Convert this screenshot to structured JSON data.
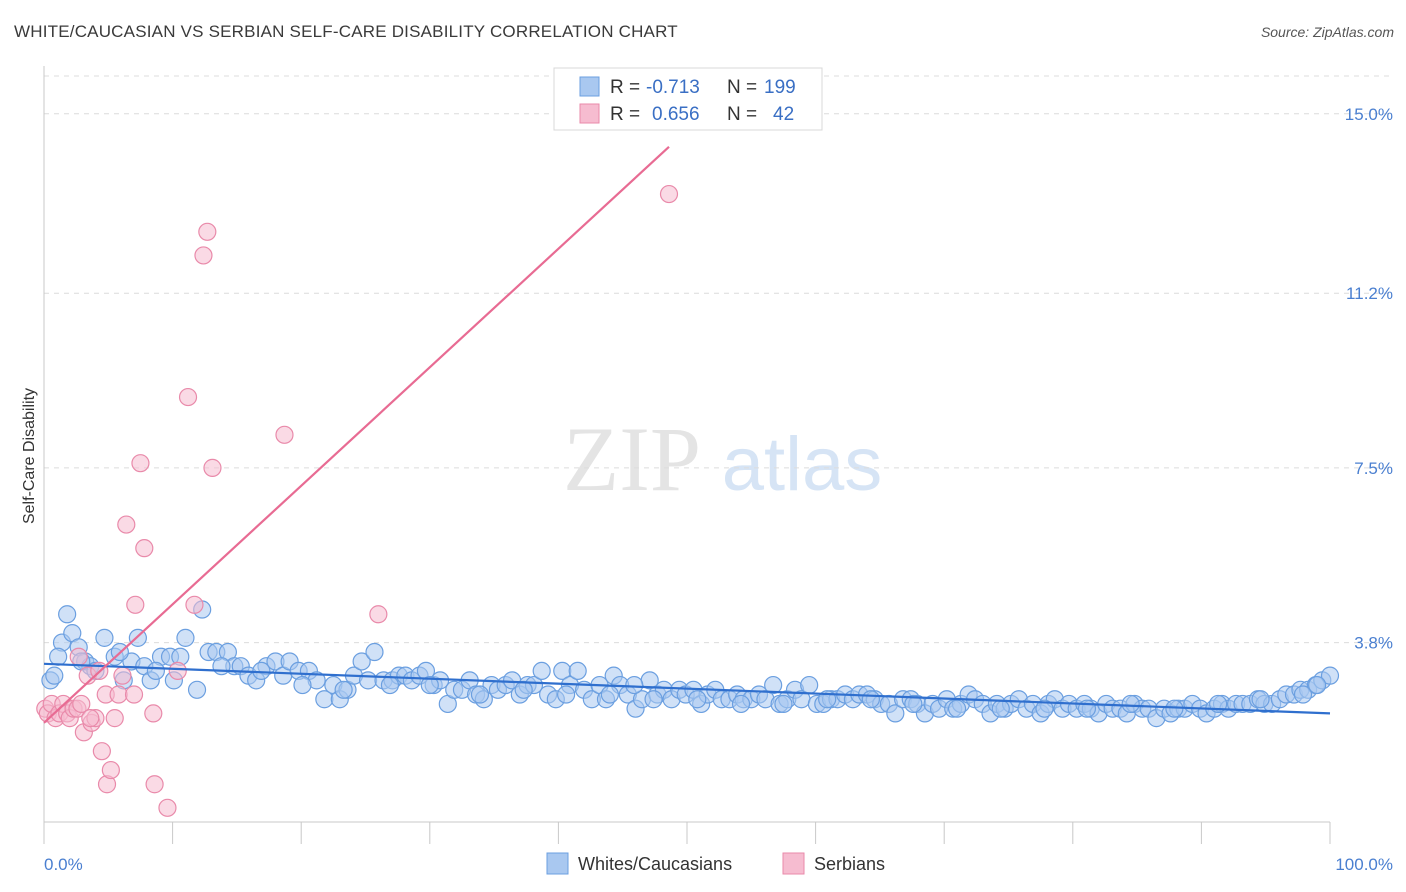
{
  "title": "WHITE/CAUCASIAN VS SERBIAN SELF-CARE DISABILITY CORRELATION CHART",
  "source": "Source: ZipAtlas.com",
  "watermark": {
    "zip": "ZIP",
    "atlas": "atlas"
  },
  "colors": {
    "blue_fill": "#a9c8f0",
    "blue_stroke": "#6b9fe0",
    "blue_line": "#2f6fce",
    "pink_fill": "#f6bcd0",
    "pink_stroke": "#e98aaa",
    "pink_line": "#e86b93",
    "tick_color": "#4a7fd0",
    "grid": "#dcdcdc"
  },
  "legend": {
    "rows": [
      {
        "r_label": "R =",
        "r_value": "-0.713",
        "n_label": "N =",
        "n_value": "199"
      },
      {
        "r_label": "R =",
        "r_value": "0.656",
        "n_label": "N =",
        "n_value": "42"
      }
    ]
  },
  "bottom_legend": [
    "Whites/Caucasians",
    "Serbians"
  ],
  "chart_data": {
    "type": "scatter",
    "title": "WHITE/CAUCASIAN VS SERBIAN SELF-CARE DISABILITY CORRELATION CHART",
    "xlabel": "",
    "ylabel": "Self-Care Disability",
    "xlim": [
      0,
      100
    ],
    "ylim": [
      0,
      15.8
    ],
    "x_tick_labels": [
      "0.0%",
      "100.0%"
    ],
    "y_ticks": [
      3.8,
      7.5,
      11.2,
      15.0
    ],
    "y_tick_labels": [
      "3.8%",
      "7.5%",
      "11.2%",
      "15.0%"
    ],
    "grid": "horizontal dashed",
    "legend_position": "top-center",
    "series": [
      {
        "name": "Whites/Caucasians",
        "r": -0.713,
        "n": 199,
        "trend": {
          "x": [
            0,
            100
          ],
          "y": [
            3.35,
            2.3
          ]
        },
        "points": [
          [
            0.5,
            3.0
          ],
          [
            0.8,
            3.1
          ],
          [
            1.4,
            3.8
          ],
          [
            1.8,
            4.4
          ],
          [
            2.2,
            4.0
          ],
          [
            2.7,
            3.7
          ],
          [
            3.2,
            3.4
          ],
          [
            3.6,
            3.3
          ],
          [
            4.0,
            3.2
          ],
          [
            4.7,
            3.9
          ],
          [
            5.5,
            3.5
          ],
          [
            6.2,
            3.0
          ],
          [
            6.8,
            3.4
          ],
          [
            7.3,
            3.9
          ],
          [
            7.8,
            3.3
          ],
          [
            8.3,
            3.0
          ],
          [
            9.1,
            3.5
          ],
          [
            9.8,
            3.5
          ],
          [
            10.6,
            3.5
          ],
          [
            11.0,
            3.9
          ],
          [
            11.9,
            2.8
          ],
          [
            12.3,
            4.5
          ],
          [
            12.8,
            3.6
          ],
          [
            13.4,
            3.6
          ],
          [
            14.3,
            3.6
          ],
          [
            14.8,
            3.3
          ],
          [
            15.3,
            3.3
          ],
          [
            15.9,
            3.1
          ],
          [
            16.5,
            3.0
          ],
          [
            17.3,
            3.3
          ],
          [
            18.0,
            3.4
          ],
          [
            18.6,
            3.1
          ],
          [
            19.1,
            3.4
          ],
          [
            19.8,
            3.2
          ],
          [
            20.6,
            3.2
          ],
          [
            21.2,
            3.0
          ],
          [
            21.8,
            2.6
          ],
          [
            22.5,
            2.9
          ],
          [
            23.0,
            2.6
          ],
          [
            23.6,
            2.8
          ],
          [
            24.1,
            3.1
          ],
          [
            24.7,
            3.4
          ],
          [
            25.2,
            3.0
          ],
          [
            25.7,
            3.6
          ],
          [
            26.4,
            3.0
          ],
          [
            27.1,
            3.0
          ],
          [
            27.6,
            3.1
          ],
          [
            28.1,
            3.1
          ],
          [
            28.6,
            3.0
          ],
          [
            29.2,
            3.1
          ],
          [
            29.7,
            3.2
          ],
          [
            30.3,
            2.9
          ],
          [
            30.8,
            3.0
          ],
          [
            31.4,
            2.5
          ],
          [
            31.9,
            2.8
          ],
          [
            32.5,
            2.8
          ],
          [
            33.1,
            3.0
          ],
          [
            33.6,
            2.7
          ],
          [
            34.2,
            2.6
          ],
          [
            34.8,
            2.9
          ],
          [
            35.3,
            2.8
          ],
          [
            35.9,
            2.9
          ],
          [
            36.4,
            3.0
          ],
          [
            37.0,
            2.7
          ],
          [
            37.6,
            2.9
          ],
          [
            38.1,
            2.9
          ],
          [
            38.7,
            3.2
          ],
          [
            39.2,
            2.7
          ],
          [
            39.8,
            2.6
          ],
          [
            40.3,
            3.2
          ],
          [
            40.9,
            2.9
          ],
          [
            41.5,
            3.2
          ],
          [
            42.0,
            2.8
          ],
          [
            42.6,
            2.6
          ],
          [
            43.2,
            2.9
          ],
          [
            43.7,
            2.6
          ],
          [
            44.3,
            3.1
          ],
          [
            44.8,
            2.9
          ],
          [
            45.4,
            2.7
          ],
          [
            46.0,
            2.4
          ],
          [
            46.5,
            2.6
          ],
          [
            47.1,
            3.0
          ],
          [
            47.7,
            2.7
          ],
          [
            48.2,
            2.8
          ],
          [
            48.8,
            2.6
          ],
          [
            49.4,
            2.8
          ],
          [
            49.9,
            2.7
          ],
          [
            50.5,
            2.8
          ],
          [
            51.1,
            2.5
          ],
          [
            51.6,
            2.7
          ],
          [
            52.2,
            2.8
          ],
          [
            52.7,
            2.6
          ],
          [
            53.3,
            2.6
          ],
          [
            53.9,
            2.7
          ],
          [
            54.4,
            2.6
          ],
          [
            55.0,
            2.6
          ],
          [
            55.6,
            2.7
          ],
          [
            56.1,
            2.6
          ],
          [
            56.7,
            2.9
          ],
          [
            57.2,
            2.5
          ],
          [
            57.8,
            2.6
          ],
          [
            58.4,
            2.8
          ],
          [
            58.9,
            2.6
          ],
          [
            59.5,
            2.9
          ],
          [
            60.1,
            2.5
          ],
          [
            60.6,
            2.5
          ],
          [
            61.2,
            2.6
          ],
          [
            61.7,
            2.6
          ],
          [
            62.3,
            2.7
          ],
          [
            62.9,
            2.6
          ],
          [
            63.4,
            2.7
          ],
          [
            64.0,
            2.7
          ],
          [
            64.6,
            2.6
          ],
          [
            65.1,
            2.5
          ],
          [
            65.7,
            2.5
          ],
          [
            66.2,
            2.3
          ],
          [
            66.8,
            2.6
          ],
          [
            67.4,
            2.6
          ],
          [
            67.9,
            2.5
          ],
          [
            68.5,
            2.3
          ],
          [
            69.1,
            2.5
          ],
          [
            69.6,
            2.4
          ],
          [
            70.2,
            2.6
          ],
          [
            70.7,
            2.4
          ],
          [
            71.3,
            2.5
          ],
          [
            71.9,
            2.7
          ],
          [
            72.4,
            2.6
          ],
          [
            73.0,
            2.5
          ],
          [
            73.6,
            2.3
          ],
          [
            74.1,
            2.5
          ],
          [
            74.7,
            2.4
          ],
          [
            75.2,
            2.5
          ],
          [
            75.8,
            2.6
          ],
          [
            76.4,
            2.4
          ],
          [
            76.9,
            2.5
          ],
          [
            77.5,
            2.3
          ],
          [
            78.1,
            2.5
          ],
          [
            78.6,
            2.6
          ],
          [
            79.2,
            2.4
          ],
          [
            79.7,
            2.5
          ],
          [
            80.3,
            2.4
          ],
          [
            80.9,
            2.5
          ],
          [
            81.4,
            2.4
          ],
          [
            82.0,
            2.3
          ],
          [
            82.6,
            2.5
          ],
          [
            83.1,
            2.4
          ],
          [
            83.7,
            2.4
          ],
          [
            84.2,
            2.3
          ],
          [
            84.8,
            2.5
          ],
          [
            85.4,
            2.4
          ],
          [
            85.9,
            2.4
          ],
          [
            86.5,
            2.2
          ],
          [
            87.1,
            2.4
          ],
          [
            87.6,
            2.3
          ],
          [
            88.2,
            2.4
          ],
          [
            88.7,
            2.4
          ],
          [
            89.3,
            2.5
          ],
          [
            89.9,
            2.4
          ],
          [
            90.4,
            2.3
          ],
          [
            91.0,
            2.4
          ],
          [
            91.6,
            2.5
          ],
          [
            92.1,
            2.4
          ],
          [
            92.7,
            2.5
          ],
          [
            93.2,
            2.5
          ],
          [
            93.8,
            2.5
          ],
          [
            94.4,
            2.6
          ],
          [
            94.9,
            2.5
          ],
          [
            95.5,
            2.5
          ],
          [
            96.1,
            2.6
          ],
          [
            96.6,
            2.7
          ],
          [
            97.2,
            2.7
          ],
          [
            97.7,
            2.8
          ],
          [
            98.3,
            2.8
          ],
          [
            98.9,
            2.9
          ],
          [
            99.4,
            3.0
          ],
          [
            100.0,
            3.1
          ],
          [
            1.1,
            3.5
          ],
          [
            2.9,
            3.4
          ],
          [
            5.9,
            3.6
          ],
          [
            8.7,
            3.2
          ],
          [
            10.1,
            3.0
          ],
          [
            13.8,
            3.3
          ],
          [
            16.9,
            3.2
          ],
          [
            20.1,
            2.9
          ],
          [
            23.3,
            2.8
          ],
          [
            26.9,
            2.9
          ],
          [
            30.0,
            2.9
          ],
          [
            33.9,
            2.7
          ],
          [
            37.3,
            2.8
          ],
          [
            40.6,
            2.7
          ],
          [
            44.0,
            2.7
          ],
          [
            47.4,
            2.6
          ],
          [
            50.8,
            2.6
          ],
          [
            54.2,
            2.5
          ],
          [
            57.5,
            2.5
          ],
          [
            60.9,
            2.6
          ],
          [
            64.3,
            2.6
          ],
          [
            67.6,
            2.5
          ],
          [
            71.0,
            2.4
          ],
          [
            74.4,
            2.4
          ],
          [
            77.8,
            2.4
          ],
          [
            81.1,
            2.4
          ],
          [
            84.5,
            2.5
          ],
          [
            87.9,
            2.4
          ],
          [
            91.3,
            2.5
          ],
          [
            94.6,
            2.6
          ],
          [
            97.9,
            2.7
          ],
          [
            99.0,
            2.9
          ],
          [
            45.9,
            2.9
          ]
        ]
      },
      {
        "name": "Serbians",
        "r": 0.656,
        "n": 42,
        "trend": {
          "x": [
            0,
            48.6
          ],
          "y": [
            2.1,
            14.3
          ]
        },
        "points": [
          [
            0.1,
            2.4
          ],
          [
            0.3,
            2.3
          ],
          [
            0.6,
            2.5
          ],
          [
            0.9,
            2.2
          ],
          [
            1.2,
            2.3
          ],
          [
            1.5,
            2.5
          ],
          [
            1.8,
            2.3
          ],
          [
            2.0,
            2.2
          ],
          [
            2.3,
            2.4
          ],
          [
            2.6,
            2.4
          ],
          [
            2.9,
            2.5
          ],
          [
            3.1,
            1.9
          ],
          [
            3.4,
            3.1
          ],
          [
            3.7,
            2.1
          ],
          [
            4.0,
            2.2
          ],
          [
            4.3,
            3.2
          ],
          [
            4.5,
            1.5
          ],
          [
            4.8,
            2.7
          ],
          [
            4.9,
            0.8
          ],
          [
            5.2,
            1.1
          ],
          [
            5.5,
            2.2
          ],
          [
            5.8,
            2.7
          ],
          [
            6.1,
            3.1
          ],
          [
            6.4,
            6.3
          ],
          [
            7.0,
            2.7
          ],
          [
            7.1,
            4.6
          ],
          [
            7.5,
            7.6
          ],
          [
            7.8,
            5.8
          ],
          [
            8.5,
            2.3
          ],
          [
            8.6,
            0.8
          ],
          [
            9.6,
            0.3
          ],
          [
            10.4,
            3.2
          ],
          [
            11.2,
            9.0
          ],
          [
            11.7,
            4.6
          ],
          [
            12.4,
            12.0
          ],
          [
            12.7,
            12.5
          ],
          [
            13.1,
            7.5
          ],
          [
            18.7,
            8.2
          ],
          [
            26.0,
            4.4
          ],
          [
            2.7,
            3.5
          ],
          [
            3.6,
            2.2
          ],
          [
            48.6,
            13.3
          ]
        ]
      }
    ]
  }
}
